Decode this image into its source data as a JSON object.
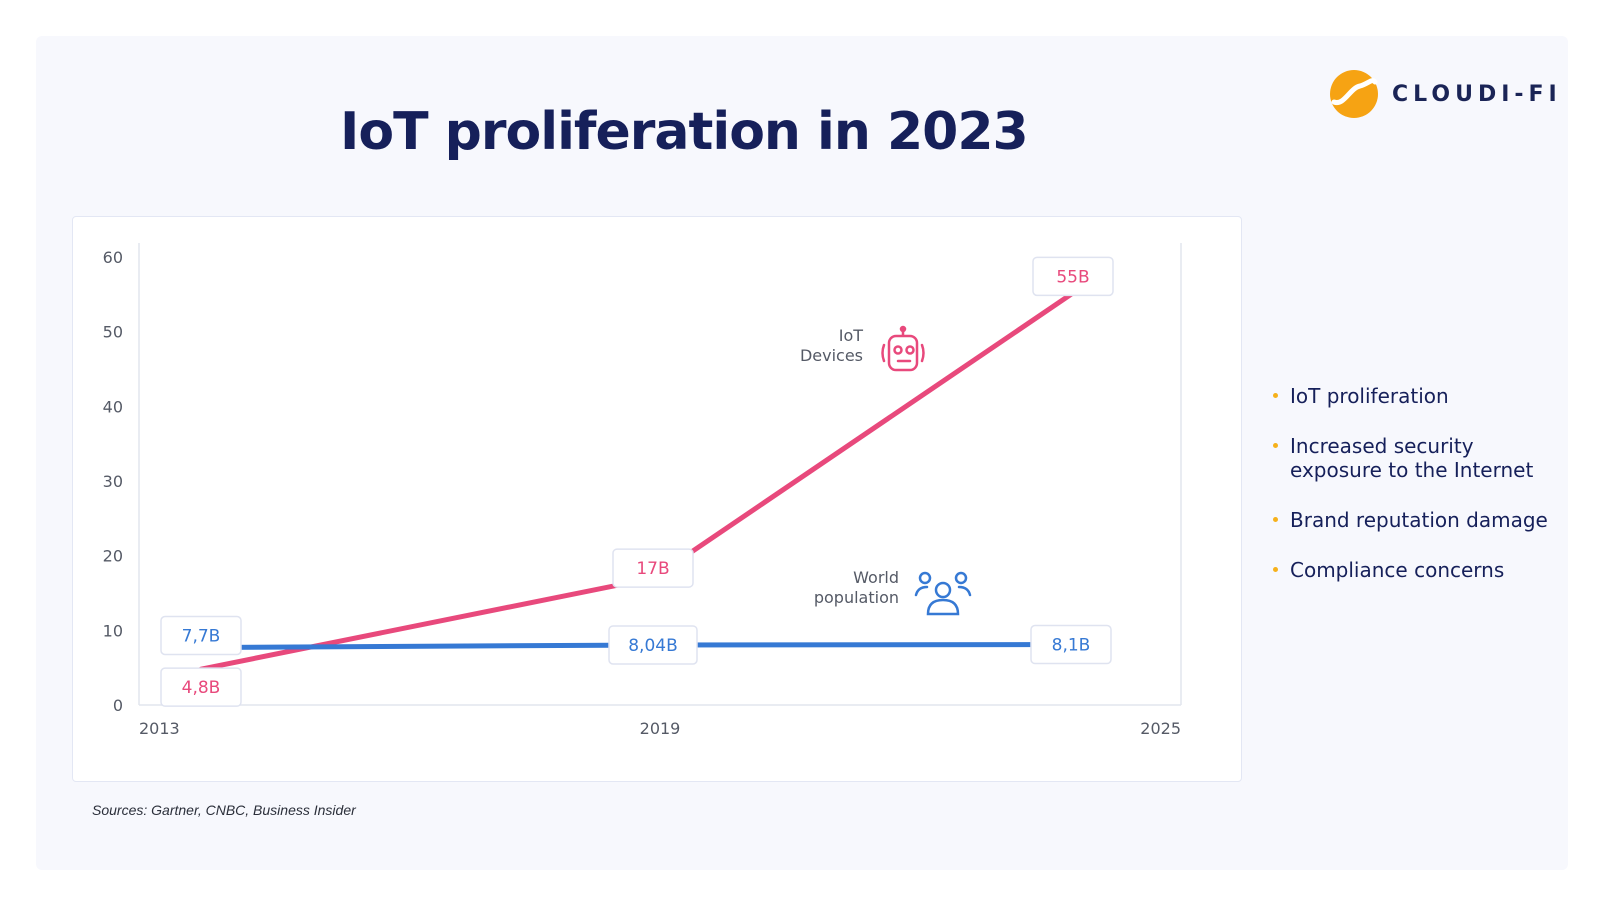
{
  "header": {
    "title": "IoT proliferation in 2023",
    "logo_text": "CLOUDI-FI"
  },
  "colors": {
    "iot": "#e8497c",
    "population": "#3679d4",
    "title": "#16205a",
    "bullet": "#f6b11b",
    "logo_orange": "#f6a313"
  },
  "chart_data": {
    "type": "line",
    "x": [
      2013,
      2019,
      2025
    ],
    "xticks": [
      "2013",
      "2019",
      "2025"
    ],
    "yticks": [
      0,
      10,
      20,
      30,
      40,
      50,
      60
    ],
    "ylim": [
      0,
      60
    ],
    "grid": false,
    "series": [
      {
        "key": "iot",
        "name": "IoT Devices",
        "name_lines": [
          "IoT",
          "Devices"
        ],
        "icon": "robot-icon",
        "values": [
          4.8,
          17,
          55
        ],
        "labels": [
          "4,8B",
          "17B",
          "55B"
        ]
      },
      {
        "key": "population",
        "name": "World population",
        "name_lines": [
          "World",
          "population"
        ],
        "icon": "people-icon",
        "values": [
          7.7,
          8.04,
          8.1
        ],
        "labels": [
          "7,7B",
          "8,04B",
          "8,1B"
        ]
      }
    ]
  },
  "source_note": "Sources: Gartner, CNBC, Business Insider",
  "bullets": [
    "IoT proliferation",
    "Increased security exposure to the Internet",
    "Brand reputation damage",
    "Compliance concerns"
  ]
}
